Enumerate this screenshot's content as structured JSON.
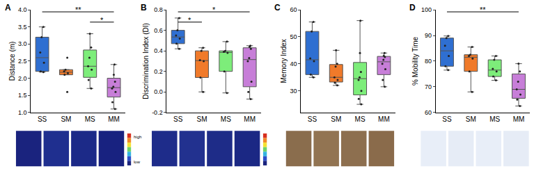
{
  "chart_data": [
    {
      "type": "box",
      "title": "A",
      "y_label": "Distance (m)",
      "categories": [
        "SS",
        "SM",
        "MS",
        "MM"
      ],
      "colors": [
        "#2f6fd1",
        "#f07a2a",
        "#7ded7a",
        "#c77ed8"
      ],
      "values": [
        [
          3.5,
          3.2,
          2.75,
          2.45,
          2.2,
          2.18
        ],
        [
          2.6,
          2.25,
          2.2,
          2.15,
          2.1,
          1.6
        ],
        [
          3.3,
          2.9,
          2.6,
          2.35,
          2.25,
          1.95,
          1.7
        ],
        [
          2.4,
          2.1,
          1.9,
          1.75,
          1.7,
          1.6,
          1.3,
          1.1
        ]
      ],
      "ylim": [
        1,
        4
      ],
      "yticks": [
        {
          "value": 1,
          "label": "1.0"
        },
        1.5,
        {
          "value": 2,
          "label": "2.0"
        },
        2.5,
        {
          "value": 3,
          "label": "3.0"
        },
        3.5,
        {
          "value": 4,
          "label": "4.0"
        }
      ],
      "grid": false,
      "significance": [
        {
          "from": "SS",
          "to": "MM",
          "text": "**"
        },
        {
          "from": "MS",
          "to": "MM",
          "text": "*"
        }
      ],
      "annotations": [
        {
          "text": "high"
        },
        {
          "text": "low"
        }
      ]
    },
    {
      "type": "box",
      "title": "B",
      "y_label": "Discrimination Index (DI)",
      "categories": [
        "SS",
        "SM",
        "MS",
        "MM"
      ],
      "colors": [
        "#2f6fd1",
        "#f07a2a",
        "#7ded7a",
        "#c77ed8"
      ],
      "values": [
        [
          0.72,
          0.6,
          0.55,
          0.52,
          0.47,
          0.42
        ],
        [
          0.43,
          0.4,
          0.31,
          0.3,
          0.14,
          0.0
        ],
        [
          0.49,
          0.4,
          0.39,
          0.38,
          0.2,
          -0.01
        ],
        [
          0.45,
          0.44,
          0.42,
          0.33,
          0.3,
          0.1,
          0.0,
          -0.07
        ]
      ],
      "ylim": [
        -0.2,
        0.8
      ],
      "yticks": [
        -0.2,
        {
          "value": 0,
          "label": "0.0"
        },
        0.2,
        0.4,
        0.6,
        0.8
      ],
      "grid": false,
      "significance": [
        {
          "from": "SS",
          "to": "SM",
          "text": "*"
        },
        {
          "from": "SS",
          "to": "MM",
          "text": "*"
        }
      ]
    },
    {
      "type": "box",
      "title": "C",
      "y_label": "Memory Index",
      "categories": [
        "SS",
        "SM",
        "MS",
        "MM"
      ],
      "colors": [
        "#2f6fd1",
        "#f07a2a",
        "#7ded7a",
        "#c77ed8"
      ],
      "values": [
        [
          55.5,
          52,
          42,
          41,
          36,
          35
        ],
        [
          45,
          40,
          39,
          35,
          34,
          33,
          32
        ],
        [
          56,
          44,
          37,
          35,
          34,
          30,
          27,
          25
        ],
        [
          44,
          43,
          42.5,
          41.5,
          40,
          38,
          34,
          31.5
        ]
      ],
      "ylim": [
        22,
        60
      ],
      "yticks": [
        30,
        40,
        50,
        60
      ],
      "grid": false,
      "significance": []
    },
    {
      "type": "box",
      "title": "D",
      "y_label": "% Mobility Time",
      "categories": [
        "SS",
        "SM",
        "MS",
        "MM"
      ],
      "colors": [
        "#2f6fd1",
        "#f07a2a",
        "#7ded7a",
        "#c77ed8"
      ],
      "values": [
        [
          89.8,
          89,
          86,
          82,
          78,
          76.5
        ],
        [
          85.5,
          82.5,
          82,
          81,
          76,
          68
        ],
        [
          82,
          80.5,
          77,
          76,
          74,
          72.5
        ],
        [
          79,
          76,
          72,
          69,
          67,
          65,
          62.5
        ]
      ],
      "ylim": [
        60,
        100
      ],
      "yticks": [
        60,
        70,
        80,
        90,
        100
      ],
      "grid": false,
      "significance": [
        {
          "from": "SS",
          "to": "MM",
          "text": "**"
        }
      ]
    }
  ]
}
